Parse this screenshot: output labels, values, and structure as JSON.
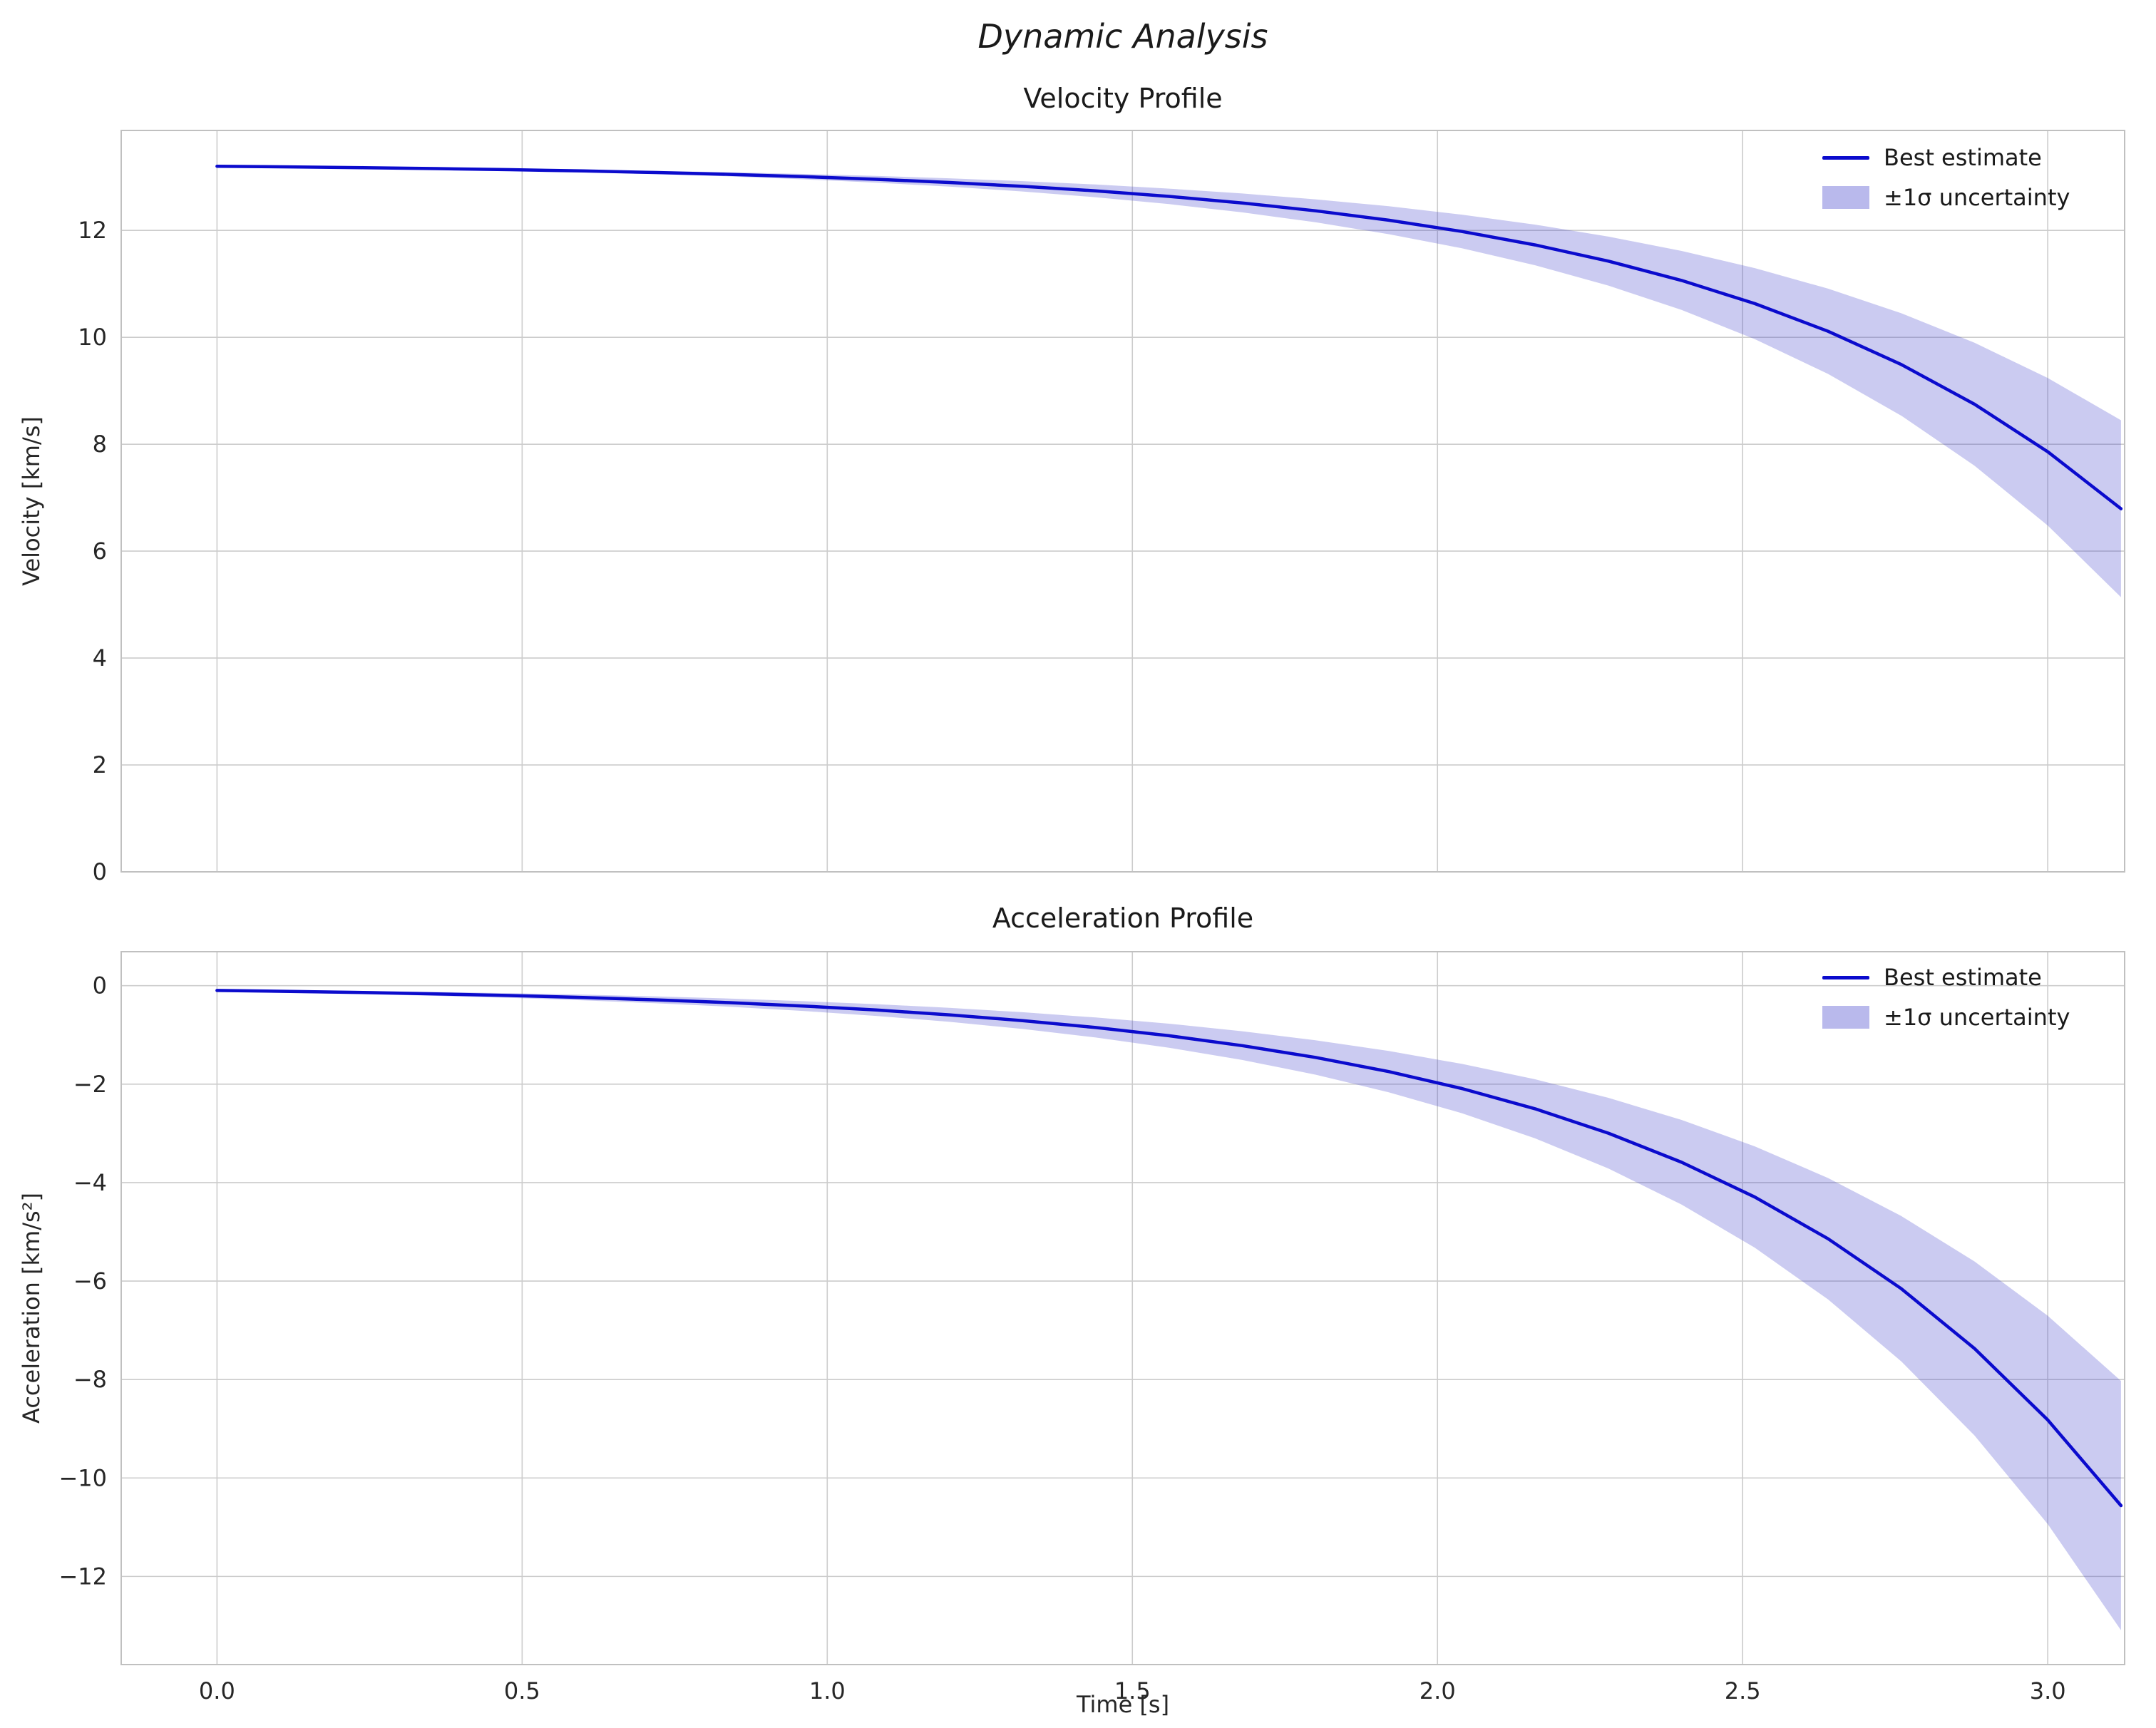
{
  "figure": {
    "title": "Dynamic Analysis"
  },
  "x_axis_label": "Time [s]",
  "colors": {
    "line": "#0b0bcd",
    "band": "#b9b9ec",
    "band_fill": "rgba(70,70,205,0.28)",
    "grid": "#cccccc",
    "spine": "#c0c0c0",
    "text": "#262626"
  },
  "chart_data": [
    {
      "type": "line",
      "title": "Velocity Profile",
      "xlabel": "",
      "ylabel": "Velocity [km/s]",
      "legend": [
        "Best estimate",
        "±1σ uncertainty"
      ],
      "legend_position": "upper right",
      "grid": true,
      "xlim": [
        -0.157,
        3.126
      ],
      "ylim": [
        0,
        13.87
      ],
      "xticks": [
        0,
        0.5,
        1,
        1.5,
        2,
        2.5,
        3
      ],
      "xtick_labels": [
        "0.0",
        "0.5",
        "1.0",
        "1.5",
        "2.0",
        "2.5",
        "3.0"
      ],
      "yticks": [
        0,
        2,
        4,
        6,
        8,
        10,
        12
      ],
      "ytick_labels": [
        "0",
        "2",
        "4",
        "6",
        "8",
        "10",
        "12"
      ],
      "x": [
        0,
        0.12,
        0.24,
        0.36,
        0.48,
        0.6,
        0.72,
        0.84,
        0.96,
        1.08,
        1.2,
        1.32,
        1.44,
        1.56,
        1.68,
        1.8,
        1.92,
        2.04,
        2.16,
        2.28,
        2.4,
        2.52,
        2.64,
        2.76,
        2.88,
        3.0,
        3.12
      ],
      "series": [
        {
          "name": "Best estimate",
          "values": [
            13.2,
            13.188,
            13.174,
            13.157,
            13.137,
            13.112,
            13.083,
            13.049,
            13.007,
            12.957,
            12.897,
            12.825,
            12.74,
            12.637,
            12.514,
            12.367,
            12.191,
            11.98,
            11.728,
            11.426,
            11.064,
            10.631,
            10.113,
            9.492,
            8.749,
            7.859,
            6.794
          ]
        }
      ],
      "uncertainty_sigma": [
        0,
        0.003,
        0.007,
        0.011,
        0.016,
        0.023,
        0.03,
        0.039,
        0.05,
        0.063,
        0.078,
        0.097,
        0.119,
        0.145,
        0.177,
        0.215,
        0.261,
        0.315,
        0.38,
        0.458,
        0.552,
        0.664,
        0.798,
        0.958,
        1.15,
        1.38,
        1.655
      ]
    },
    {
      "type": "line",
      "title": "Acceleration Profile",
      "xlabel": "Time [s]",
      "ylabel": "Acceleration [km/s²]",
      "legend": [
        "Best estimate",
        "±1σ uncertainty"
      ],
      "legend_position": "upper right",
      "grid": true,
      "xlim": [
        -0.157,
        3.126
      ],
      "ylim": [
        -13.79,
        0.69
      ],
      "xticks": [
        0,
        0.5,
        1,
        1.5,
        2,
        2.5,
        3
      ],
      "xtick_labels": [
        "0.0",
        "0.5",
        "1.0",
        "1.5",
        "2.0",
        "2.5",
        "3.0"
      ],
      "yticks": [
        0,
        -2,
        -4,
        -6,
        -8,
        -10,
        -12
      ],
      "ytick_labels": [
        "0",
        "−2",
        "−4",
        "−6",
        "−8",
        "−10",
        "−12"
      ],
      "x": [
        0,
        0.12,
        0.24,
        0.36,
        0.48,
        0.6,
        0.72,
        0.84,
        0.96,
        1.08,
        1.2,
        1.32,
        1.44,
        1.56,
        1.68,
        1.8,
        1.92,
        2.04,
        2.16,
        2.28,
        2.4,
        2.52,
        2.64,
        2.76,
        2.88,
        3.0,
        3.12
      ],
      "series": [
        {
          "name": "Best estimate",
          "values": [
            -0.098,
            -0.117,
            -0.14,
            -0.168,
            -0.201,
            -0.241,
            -0.289,
            -0.345,
            -0.414,
            -0.495,
            -0.593,
            -0.71,
            -0.85,
            -1.017,
            -1.218,
            -1.458,
            -1.746,
            -2.09,
            -2.502,
            -2.996,
            -3.587,
            -4.294,
            -5.141,
            -6.155,
            -7.369,
            -8.822,
            -10.561
          ]
        }
      ],
      "uncertainty_sigma": [
        0.024,
        0.028,
        0.034,
        0.04,
        0.048,
        0.058,
        0.069,
        0.083,
        0.099,
        0.119,
        0.142,
        0.17,
        0.204,
        0.244,
        0.292,
        0.35,
        0.419,
        0.501,
        0.6,
        0.718,
        0.86,
        1.03,
        1.233,
        1.476,
        1.767,
        2.115,
        2.533
      ]
    }
  ]
}
